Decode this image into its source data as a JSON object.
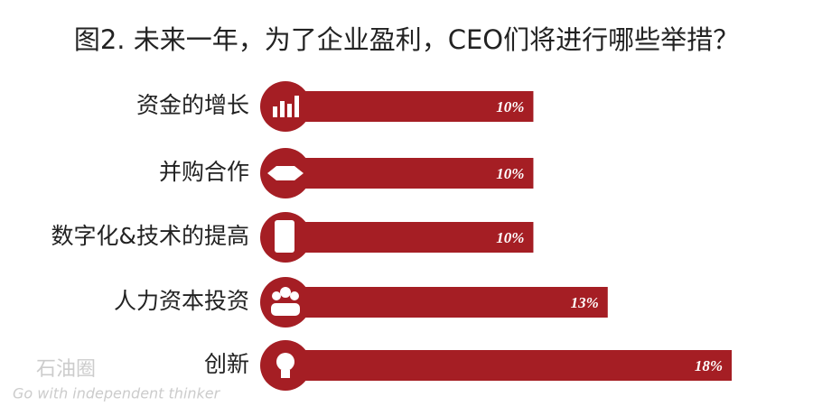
{
  "chart_data": {
    "type": "bar",
    "orientation": "horizontal",
    "title": "图2. 未来一年，为了企业盈利，CEO们将进行哪些举措？",
    "categories": [
      "资金的增长",
      "并购合作",
      "数字化&技术的提高",
      "人力资本投资",
      "创新"
    ],
    "values": [
      10,
      10,
      10,
      13,
      18
    ],
    "value_labels": [
      "10%",
      "10%",
      "10%",
      "13%",
      "18%"
    ],
    "color": "#a51e24",
    "watermark": {
      "logo": "石油圈",
      "tagline": "Go with independent thinker"
    }
  }
}
